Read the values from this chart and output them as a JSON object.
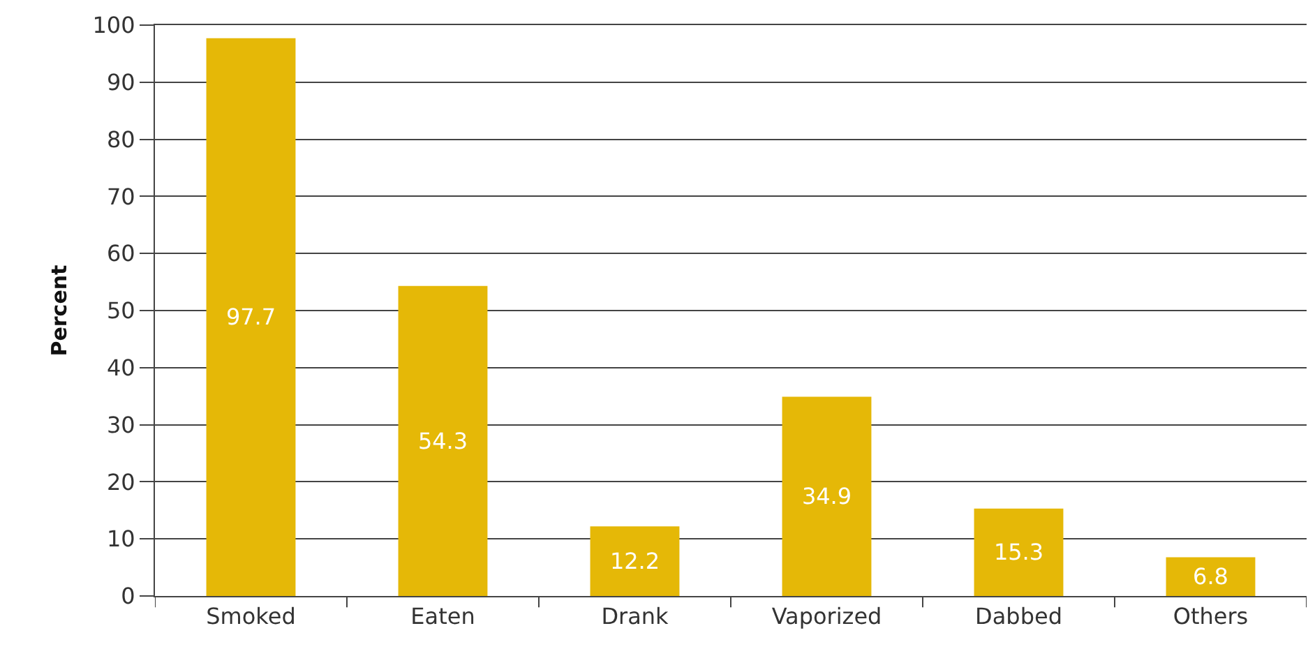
{
  "chart_data": {
    "type": "bar",
    "ylabel": "Percent",
    "categories": [
      "Smoked",
      "Eaten",
      "Drank",
      "Vaporized",
      "Dabbed",
      "Others"
    ],
    "values": [
      97.7,
      54.3,
      12.2,
      34.9,
      15.3,
      6.8
    ],
    "color": "#e5b807",
    "ylim": [
      0,
      100
    ],
    "yticks": [
      0,
      10,
      20,
      30,
      40,
      50,
      60,
      70,
      80,
      90,
      100
    ],
    "grid": "y",
    "data_labels": true
  }
}
